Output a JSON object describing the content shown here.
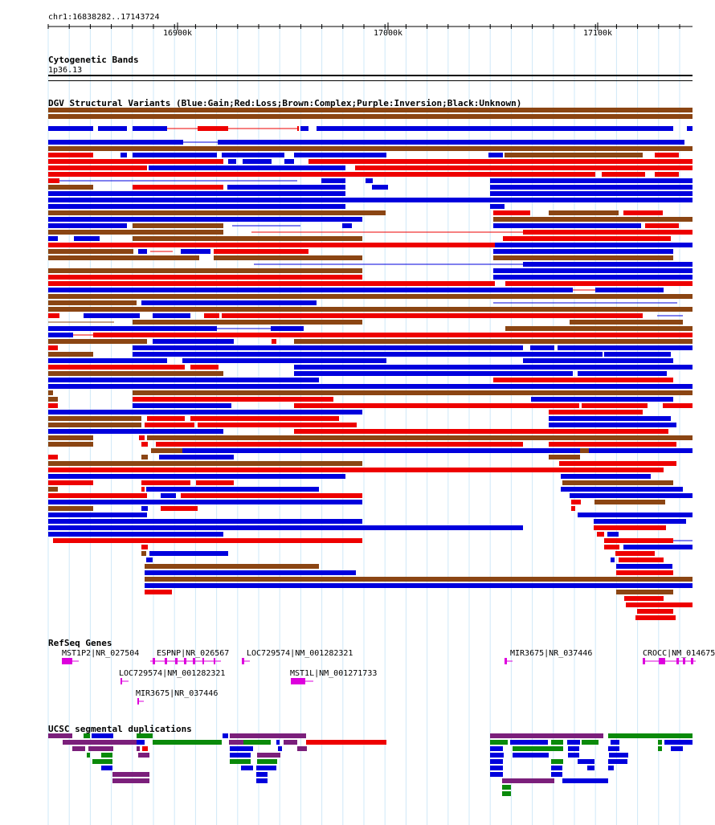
{
  "region": "chr1:16838282..17143724",
  "ruler": {
    "ticks": [
      {
        "label": "16900k",
        "pos": 16900000
      },
      {
        "label": "17000k",
        "pos": 17000000
      },
      {
        "label": "17100k",
        "pos": 17100000
      }
    ]
  },
  "tracks": {
    "cytoband": {
      "title": "Cytogenetic Bands",
      "band": "1p36.13"
    },
    "dgv": {
      "title": "DGV Structural Variants (Blue:Gain;Red:Loss;Brown:Complex;Purple:Inversion;Black:Unknown)"
    },
    "refseq": {
      "title": "RefSeq Genes",
      "genes": [
        {
          "label": "MST1P2|NR_027504"
        },
        {
          "label": "ESPNP|NR_026567"
        },
        {
          "label": "LOC729574|NM_001282321"
        },
        {
          "label": "MIR3675|NR_037446"
        },
        {
          "label": "CROCC|NM_014675"
        },
        {
          "label": "LOC729574|NM_001282321"
        },
        {
          "label": "MST1L|NM_001271733"
        },
        {
          "label": "MIR3675|NR_037446"
        }
      ]
    },
    "segdups": {
      "title": "UCSC segmental duplications"
    }
  },
  "colors": {
    "gain": "#0000dd",
    "loss": "#ee0000",
    "complex": "#8b4513",
    "gene": "#dd00dd",
    "seg_green": "#0a8a0a",
    "seg_purple": "#7b1f7b",
    "grid": "#cfe8f8"
  }
}
